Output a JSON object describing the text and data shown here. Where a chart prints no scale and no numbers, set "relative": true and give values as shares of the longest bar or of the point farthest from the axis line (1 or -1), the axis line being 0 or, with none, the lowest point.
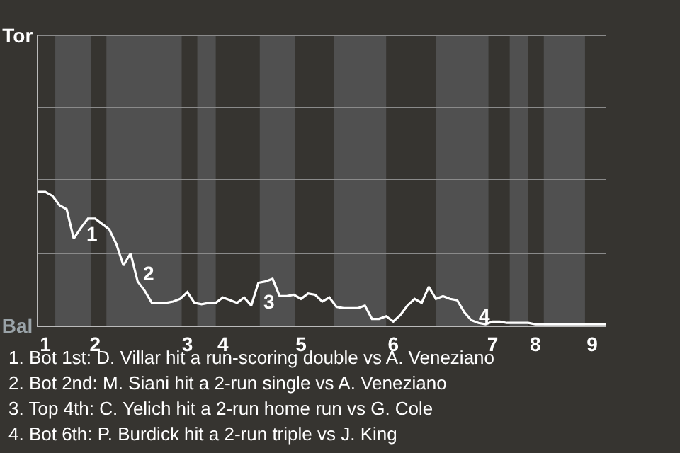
{
  "chart_data": {
    "type": "line",
    "relative": true,
    "categories": [
      null,
      "1",
      null,
      null,
      null,
      null,
      null,
      null,
      "2",
      null,
      null,
      null,
      null,
      null,
      null,
      null,
      null,
      null,
      null,
      null,
      null,
      "3",
      null,
      null,
      null,
      null,
      "4",
      null,
      null,
      null,
      null,
      null,
      null,
      null,
      null,
      null,
      null,
      "5",
      null,
      null,
      null,
      null,
      null,
      null,
      null,
      null,
      null,
      null,
      null,
      null,
      "6",
      null,
      null,
      null,
      null,
      null,
      null,
      null,
      null,
      null,
      null,
      null,
      null,
      null,
      "7",
      null,
      null,
      null,
      null,
      null,
      "8",
      null,
      null,
      null,
      null,
      null,
      null,
      null,
      "9",
      null,
      null
    ],
    "series": [
      {
        "color": "#ffffff",
        "values": [
          1,
          1,
          0.97,
          0.9,
          0.87,
          0.65,
          0.73,
          0.8,
          0.8,
          0.76,
          0.72,
          0.61,
          0.45,
          0.54,
          0.33,
          0.26,
          0.17,
          0.17,
          0.17,
          0.18,
          0.2,
          0.25,
          0.17,
          0.16,
          0.17,
          0.17,
          0.21,
          0.19,
          0.17,
          0.21,
          0.15,
          0.32,
          0.33,
          0.35,
          0.22,
          0.22,
          0.23,
          0.2,
          0.24,
          0.23,
          0.18,
          0.21,
          0.14,
          0.13,
          0.13,
          0.13,
          0.15,
          0.05,
          0.05,
          0.07,
          0.03,
          0.08,
          0.15,
          0.2,
          0.17,
          0.29,
          0.2,
          0.22,
          0.2,
          0.19,
          0.1,
          0.04,
          0.02,
          0.01,
          0.03,
          0.03,
          0.02,
          0.02,
          0.02,
          0.02,
          0.01,
          0.01,
          0.01,
          0.01,
          0.01,
          0.01,
          0.01,
          0.01,
          0.01,
          0.01,
          0.01
        ]
      }
    ],
    "ref_lines": [
      {
        "axis": "y",
        "value": 0.54,
        "color": "#8a8a8a"
      },
      {
        "axis": "y",
        "value": 1.09,
        "color": "#8a8a8a"
      },
      {
        "axis": "y",
        "value": 1.63,
        "color": "#8a8a8a"
      }
    ],
    "annotations": [
      "Tor",
      "Bal",
      "1",
      "2",
      "3",
      "4",
      "1. Bot 1st: D. Villar hit a run-scoring double vs A. Veneziano",
      "2. Bot 2nd: M. Siani hit a 2-run single vs A. Veneziano",
      "3. Top 4th: C. Yelich hit a 2-run home run vs G. Cole",
      "4. Bot 6th: P. Burdick hit a 2-run triple vs J. King"
    ],
    "marker": "none",
    "line_style": "solid"
  }
}
